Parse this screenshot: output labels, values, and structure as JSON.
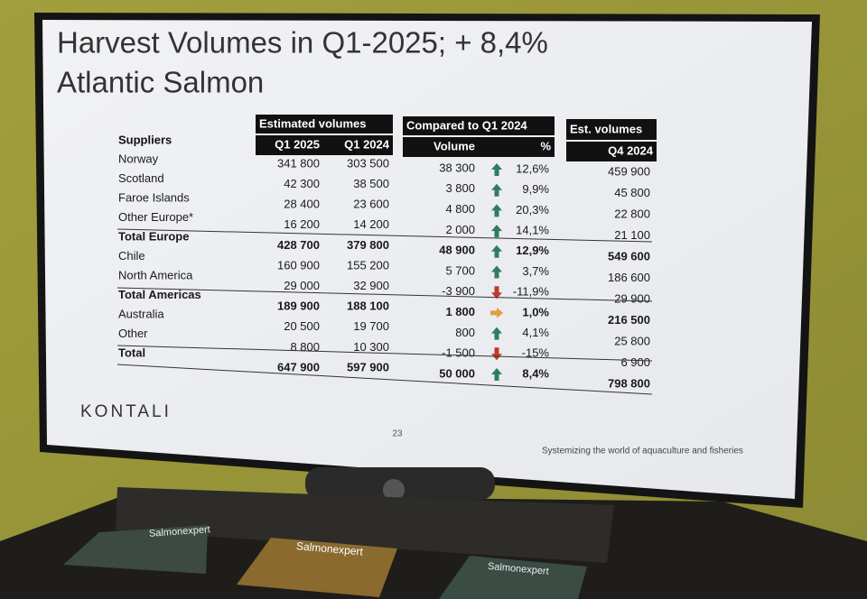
{
  "slide": {
    "title_line1": "Harvest Volumes in Q1-2025; + 8,4%",
    "title_line2": "Atlantic Salmon",
    "headers": {
      "suppliers": "Suppliers",
      "estimated_volumes": "Estimated volumes",
      "q1_2025": "Q1 2025",
      "q1_2024": "Q1 2024",
      "compared": "Compared to Q1 2024",
      "volume": "Volume",
      "percent": "%",
      "est_volumes": "Est. volumes",
      "q4_2024": "Q4 2024"
    },
    "table": {
      "rows": [
        [
          "Norway",
          "341 800",
          "303 500",
          "38 300",
          "12,6%",
          "459 900"
        ],
        [
          "Scotland",
          "42 300",
          "38 500",
          "3 800",
          "9,9%",
          "45 800"
        ],
        [
          "Faroe Islands",
          "28 400",
          "23 600",
          "4 800",
          "20,3%",
          "22 800"
        ],
        [
          "Other Europe*",
          "16 200",
          "14 200",
          "2 000",
          "14,1%",
          "21 100"
        ],
        [
          "Total Europe",
          "428 700",
          "379 800",
          "48 900",
          "12,9%",
          "549 600"
        ],
        [
          "Chile",
          "160 900",
          "155 200",
          "5 700",
          "3,7%",
          "186 600"
        ],
        [
          "North America",
          "29 000",
          "32 900",
          "-3 900",
          "-11,9%",
          "29 900"
        ],
        [
          "Total Americas",
          "189 900",
          "188 100",
          "1 800",
          "1,0%",
          "216 500"
        ],
        [
          "Australia",
          "20 500",
          "19 700",
          "800",
          "4,1%",
          "25 800"
        ],
        [
          "Other",
          "8 800",
          "10 300",
          "-1 500",
          "-15%",
          "6 900"
        ],
        [
          "Total",
          "647 900",
          "597 900",
          "50 000",
          "8,4%",
          "798 800"
        ]
      ]
    },
    "logo": "KONTALI",
    "page_number": "23",
    "tagline": "Systemizing the world of aquaculture and fisheries"
  },
  "magazines": [
    "Salmonexpert",
    "Salmonexpert",
    "Salmonexpert"
  ]
}
